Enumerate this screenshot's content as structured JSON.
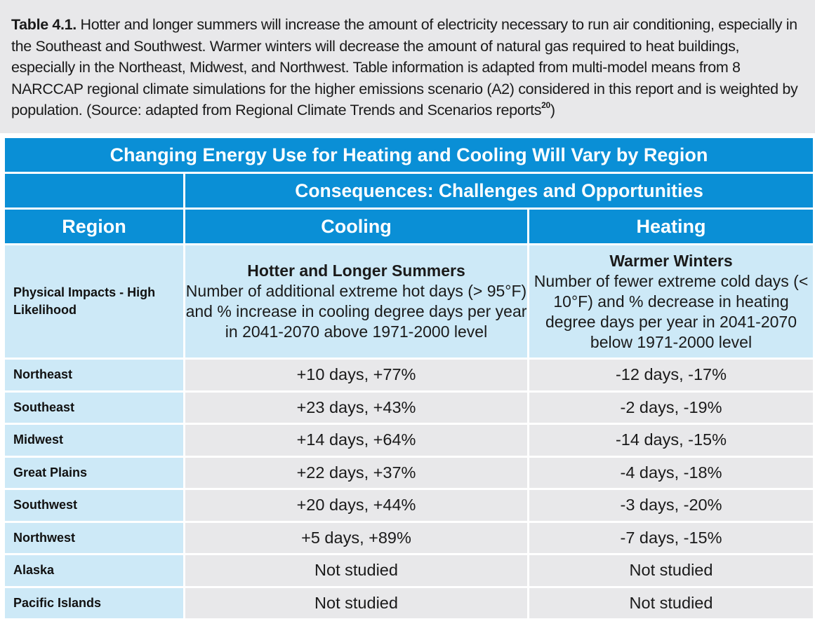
{
  "caption": {
    "label": "Table 4.1.",
    "text": " Hotter and longer summers will increase the amount of electricity necessary to run air conditioning, especially in the Southeast and Southwest. Warmer winters will decrease the amount of natural gas required to heat buildings, especially in the Northeast, Midwest, and Northwest. Table information is adapted from multi-model means from 8 NARCCAP regional climate simulations for the higher emissions scenario (A2) considered in this report and is weighted by population. (Source: adapted from Regional Climate Trends and Scenarios reports",
    "ref": "20",
    "close": ")"
  },
  "table": {
    "title": "Changing Energy Use for Heating and Cooling Will Vary by Region",
    "consequences_header": "Consequences: Challenges and Opportunities",
    "headers": {
      "region": "Region",
      "cooling": "Cooling",
      "heating": "Heating"
    },
    "impacts": {
      "label": "Physical Impacts - High Likelihood",
      "cooling_title": "Hotter and Longer Summers",
      "cooling_desc": "Number of additional extreme hot days (> 95°F) and % increase in cooling degree days per year in 2041-2070 above 1971-2000 level",
      "heating_title": "Warmer Winters",
      "heating_desc": "Number of fewer extreme cold days (< 10°F) and % decrease in heating degree days per year in 2041-2070 below 1971-2000 level"
    },
    "rows": [
      {
        "region": "Northeast",
        "cooling": "+10 days, +77%",
        "heating": "-12 days, -17%"
      },
      {
        "region": "Southeast",
        "cooling": "+23 days, +43%",
        "heating": "-2 days, -19%"
      },
      {
        "region": "Midwest",
        "cooling": "+14 days, +64%",
        "heating": "-14 days, -15%"
      },
      {
        "region": "Great Plains",
        "cooling": "+22 days, +37%",
        "heating": "-4 days, -18%"
      },
      {
        "region": "Southwest",
        "cooling": "+20 days, +44%",
        "heating": "-3 days, -20%"
      },
      {
        "region": "Northwest",
        "cooling": "+5 days, +89%",
        "heating": "-7 days, -15%"
      },
      {
        "region": "Alaska",
        "cooling": "Not studied",
        "heating": "Not studied"
      },
      {
        "region": "Pacific Islands",
        "cooling": "Not studied",
        "heating": "Not studied"
      }
    ]
  },
  "colors": {
    "header_blue": "#0a8fd6",
    "label_light_blue": "#cde9f7",
    "value_gray": "#e8e8ea"
  }
}
